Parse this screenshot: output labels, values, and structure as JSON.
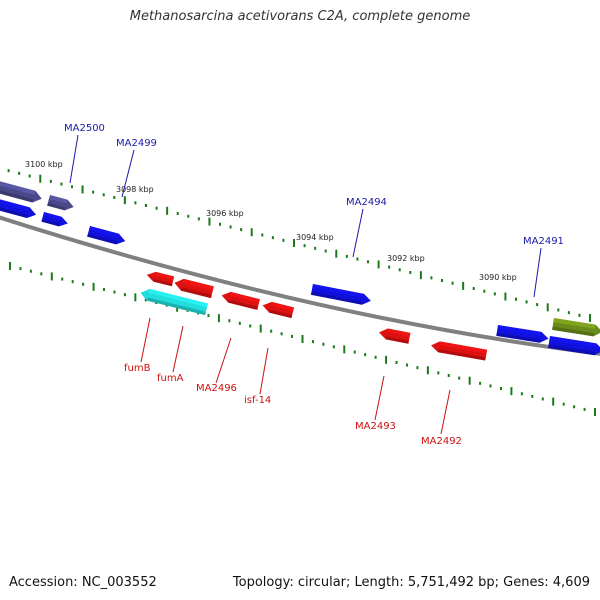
{
  "title": "Methanosarcina acetivorans C2A, complete genome",
  "footer": {
    "accession": "Accession: NC_003552",
    "summary": "Topology: circular; Length: 5,751,492 bp; Genes: 4,609"
  },
  "colors": {
    "backbone": "#808080",
    "tick": "#1a7a1a",
    "label_forward": "#1a1aaa",
    "label_reverse": "#cc1111",
    "gene_blue": "#1111dd",
    "gene_navy": "#4a4a8a",
    "gene_red": "#dd1111",
    "gene_cyan": "#22dddd",
    "gene_olive": "#6a8a1a"
  },
  "scale_labels": [
    "3100 kbp",
    "3098 kbp",
    "3096 kbp",
    "3094 kbp",
    "3092 kbp",
    "3090 kbp"
  ],
  "gene_labels_forward": [
    "MA2500",
    "MA2499",
    "MA2494",
    "MA2491"
  ],
  "gene_labels_reverse": [
    "fumB",
    "fumA",
    "MA2496",
    "isf-14",
    "MA2493",
    "MA2492"
  ],
  "features": [
    {
      "strand": "forward",
      "color": "gene_navy"
    },
    {
      "strand": "forward",
      "color": "gene_navy"
    },
    {
      "strand": "forward",
      "color": "gene_blue"
    },
    {
      "strand": "forward",
      "color": "gene_blue"
    },
    {
      "strand": "forward",
      "color": "gene_blue"
    },
    {
      "strand": "forward",
      "color": "gene_blue"
    },
    {
      "strand": "forward",
      "color": "gene_blue"
    },
    {
      "strand": "forward",
      "color": "gene_blue"
    },
    {
      "strand": "forward",
      "color": "gene_olive"
    },
    {
      "strand": "reverse",
      "color": "gene_red"
    },
    {
      "strand": "reverse",
      "color": "gene_red"
    },
    {
      "strand": "reverse",
      "color": "gene_cyan"
    },
    {
      "strand": "reverse",
      "color": "gene_red"
    },
    {
      "strand": "reverse",
      "color": "gene_red"
    },
    {
      "strand": "reverse",
      "color": "gene_red"
    },
    {
      "strand": "reverse",
      "color": "gene_red"
    }
  ]
}
